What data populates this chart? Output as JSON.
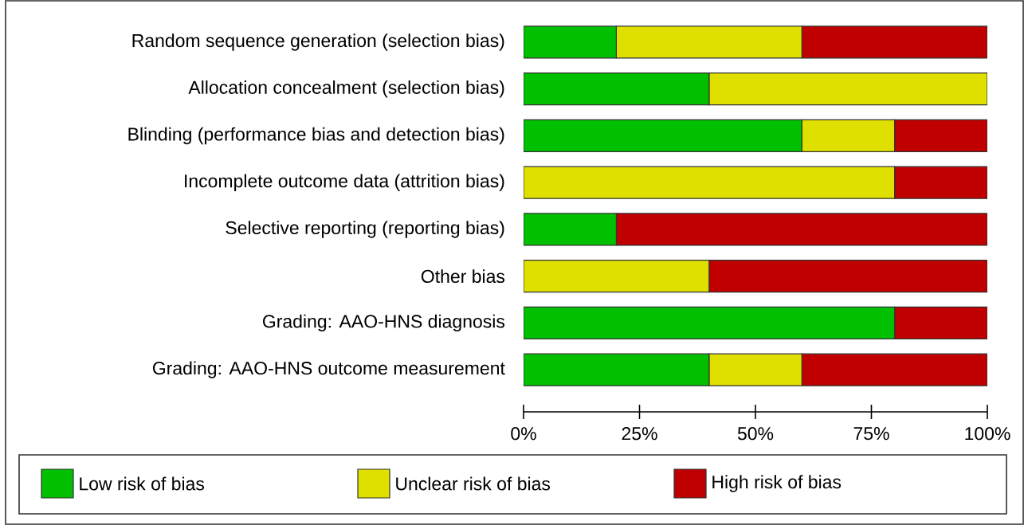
{
  "chart_data": {
    "type": "bar",
    "orientation": "horizontal",
    "stacked": true,
    "legend": "bottom",
    "categories": [
      "Random sequence generation (selection bias)",
      "Allocation concealment (selection bias)",
      "Blinding (performance bias and detection bias)",
      "Incomplete outcome data (attrition bias)",
      "Selective reporting (reporting bias)",
      "Other bias",
      "Grading: AAO-HNS diagnosis",
      "Grading: AAO-HNS outcome measurement"
    ],
    "series": [
      {
        "name": "Low risk of bias",
        "color": "#00c000",
        "values": [
          20,
          40,
          60,
          0,
          20,
          0,
          80,
          40
        ]
      },
      {
        "name": "Unclear risk of bias",
        "color": "#e0e000",
        "values": [
          40,
          60,
          20,
          80,
          0,
          40,
          0,
          20
        ]
      },
      {
        "name": "High risk of bias",
        "color": "#c00000",
        "values": [
          40,
          0,
          20,
          20,
          80,
          60,
          20,
          40
        ]
      }
    ],
    "xlim": [
      0,
      100
    ],
    "xticks": [
      {
        "value": 0,
        "label": "0%"
      },
      {
        "value": 25,
        "label": "25%"
      },
      {
        "value": 50,
        "label": "50%"
      },
      {
        "value": 75,
        "label": "75%"
      },
      {
        "value": 100,
        "label": "100%"
      }
    ]
  }
}
